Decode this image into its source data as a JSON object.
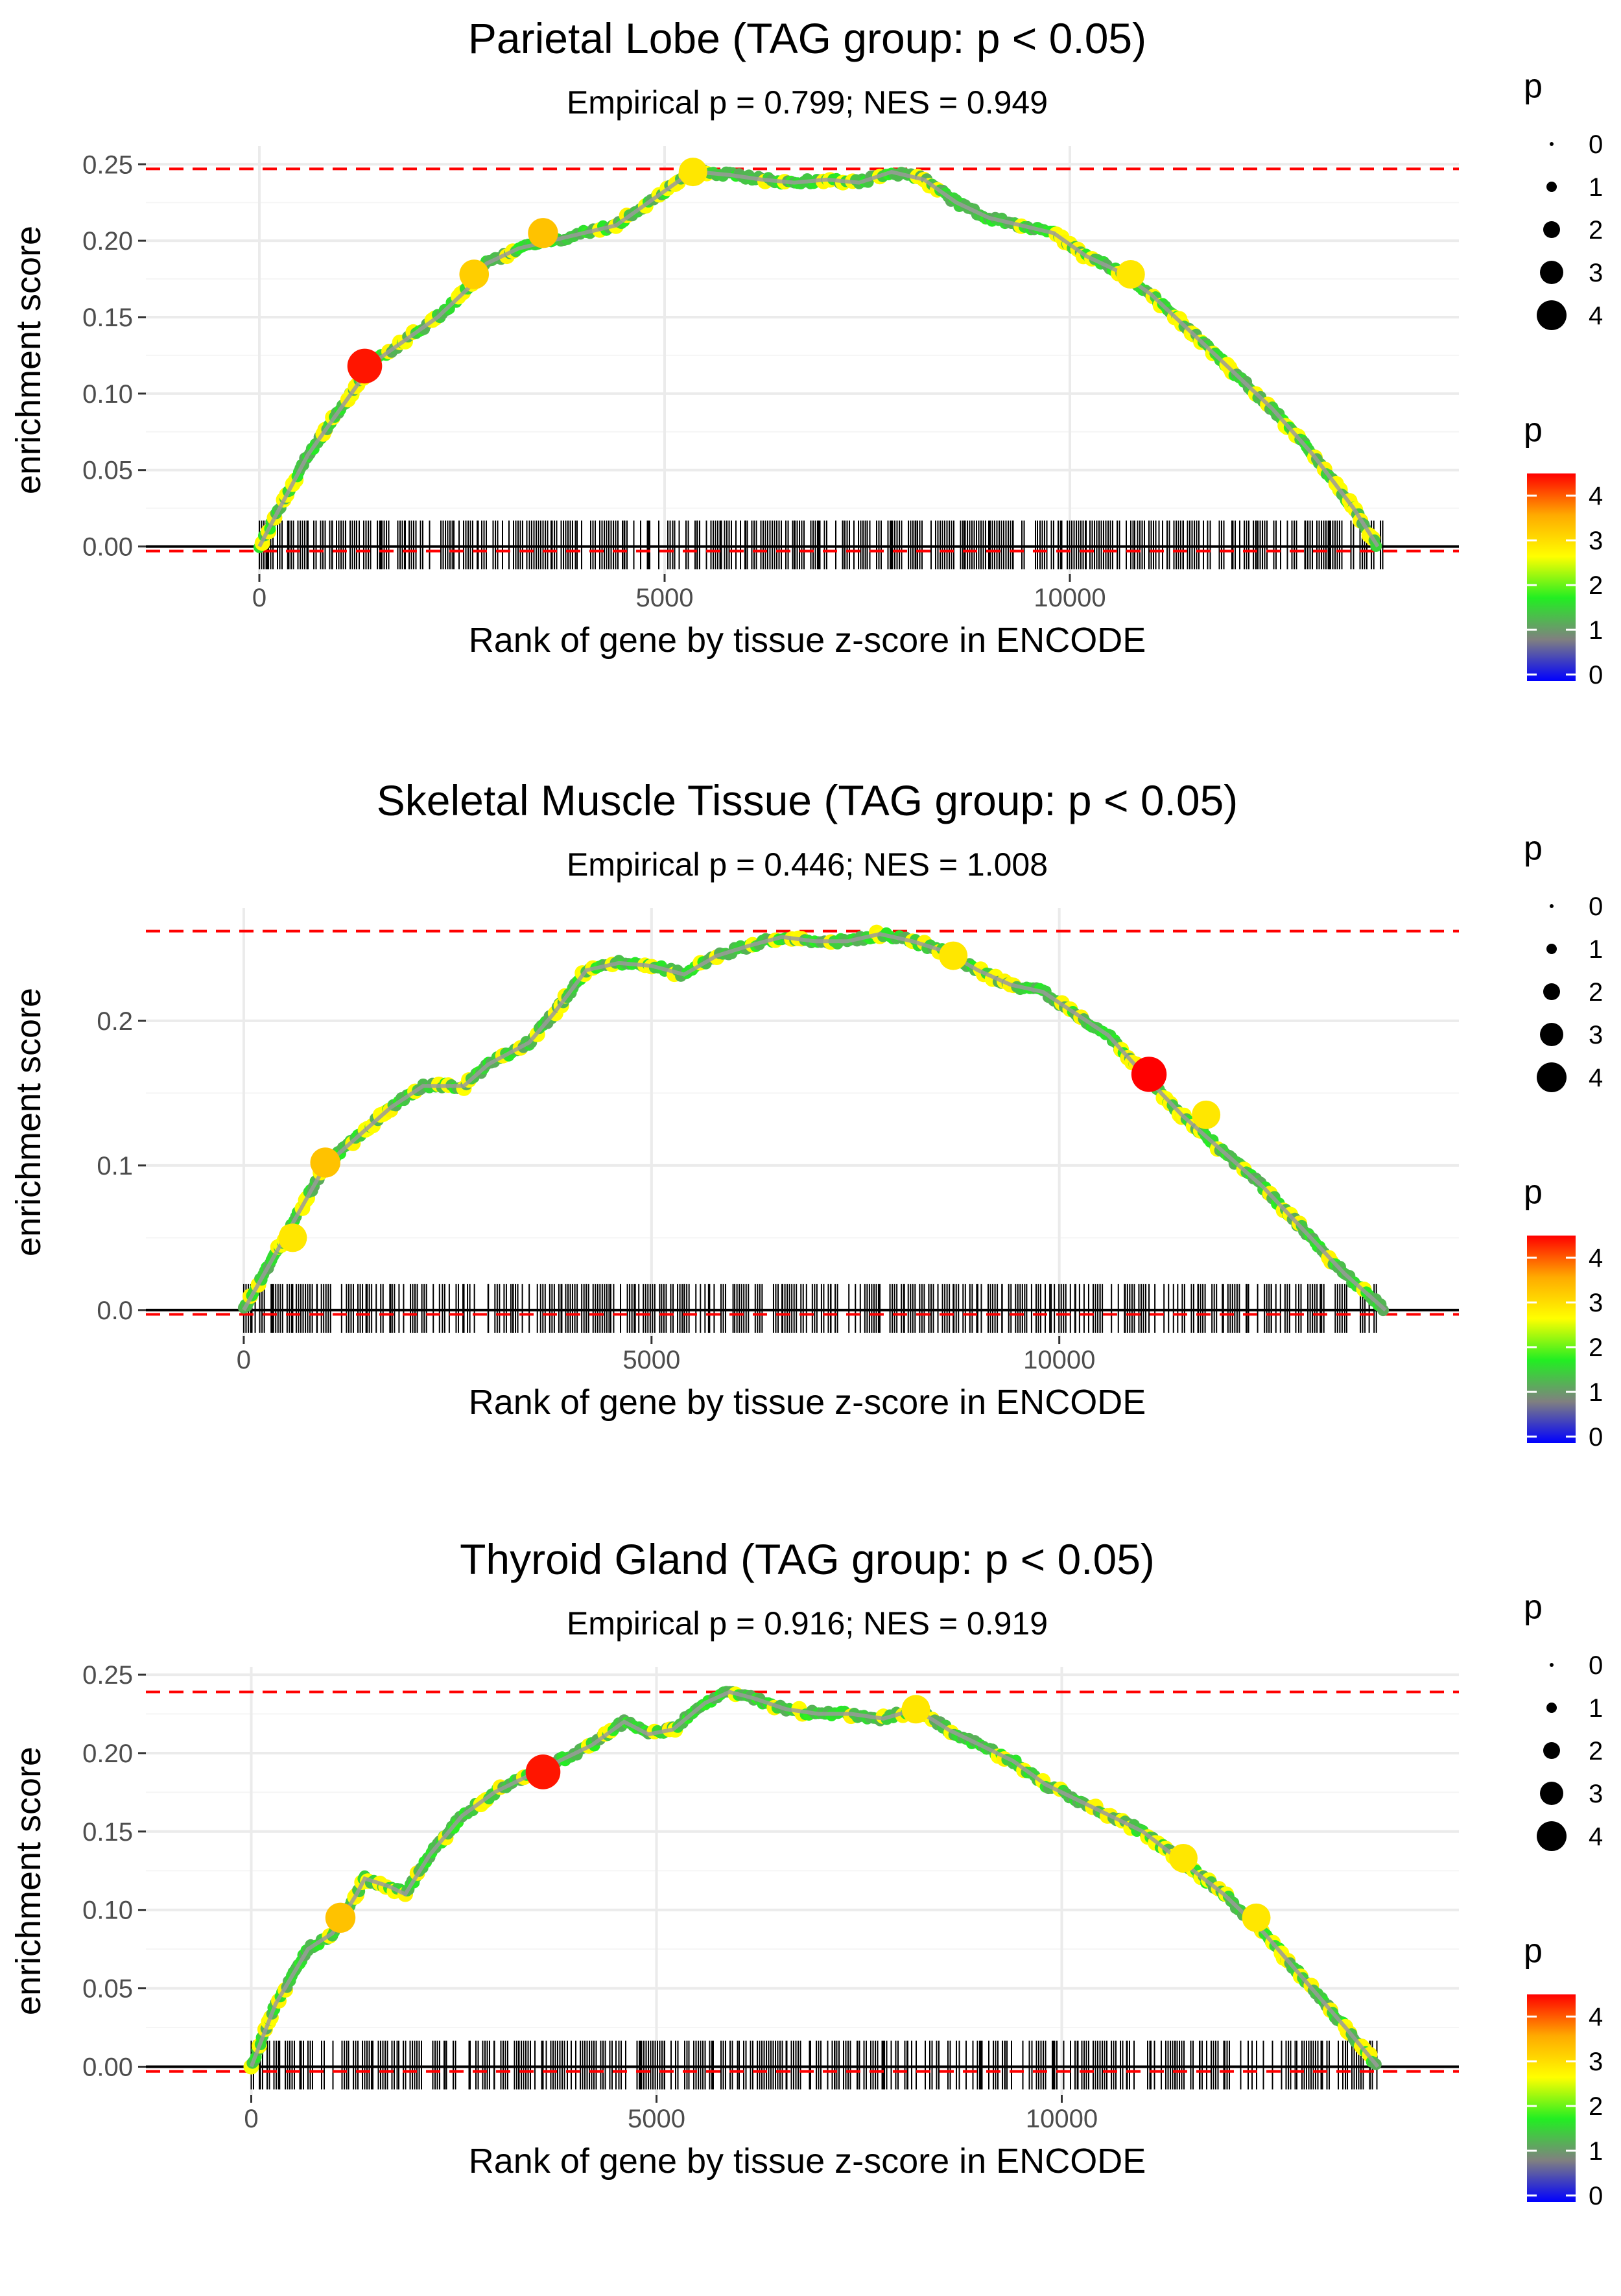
{
  "chart_data": [
    {
      "type": "line",
      "title": "Parietal Lobe (TAG group: p < 0.05)",
      "subtitle": "Empirical p = 0.799; NES = 0.949",
      "xlabel": "Rank of gene by tissue z-score in ENCODE",
      "ylabel": "enrichment score",
      "xlim": [
        -1400,
        14800
      ],
      "ylim": [
        -0.018,
        0.262
      ],
      "xticks": [
        0,
        5000,
        10000
      ],
      "xtick_labels": [
        "0",
        "5000",
        "10000"
      ],
      "yticks": [
        0.0,
        0.05,
        0.1,
        0.15,
        0.2,
        0.25
      ],
      "ytick_labels": [
        "0.00",
        "0.05",
        "0.10",
        "0.15",
        "0.20",
        "0.25"
      ],
      "max_es_line": 0.247,
      "min_es_line": -0.003,
      "series": [
        {
          "name": "running enrichment score",
          "x": [
            0,
            300,
            600,
            1000,
            1400,
            1800,
            2200,
            2600,
            2800,
            3200,
            3600,
            4000,
            4400,
            4800,
            5200,
            5400,
            5800,
            6200,
            6600,
            7000,
            7400,
            7800,
            8200,
            8600,
            9000,
            9400,
            9800,
            10200,
            10600,
            11000,
            11500,
            12000,
            12500,
            13000,
            13500,
            13800
          ],
          "y": [
            0.0,
            0.03,
            0.06,
            0.09,
            0.12,
            0.135,
            0.15,
            0.17,
            0.185,
            0.195,
            0.2,
            0.205,
            0.21,
            0.225,
            0.24,
            0.245,
            0.243,
            0.24,
            0.238,
            0.24,
            0.238,
            0.245,
            0.24,
            0.225,
            0.215,
            0.21,
            0.205,
            0.19,
            0.18,
            0.165,
            0.14,
            0.115,
            0.09,
            0.06,
            0.025,
            0.0
          ]
        }
      ],
      "highlight_points": [
        {
          "x": 1300,
          "y": 0.118,
          "p": 4.2
        },
        {
          "x": 5350,
          "y": 0.245,
          "p": 3.0
        },
        {
          "x": 2650,
          "y": 0.178,
          "p": 3.2
        },
        {
          "x": 10750,
          "y": 0.178,
          "p": 3.0
        },
        {
          "x": 3500,
          "y": 0.205,
          "p": 3.3
        }
      ],
      "gene_ticks_x": [
        100,
        350,
        600,
        900,
        1200,
        1500,
        1800,
        2100,
        2400,
        2700,
        3000,
        3300,
        3600,
        3900,
        4200,
        4500,
        4800,
        5100,
        5400,
        5700,
        6000,
        6300,
        6600,
        6900,
        7200,
        7500,
        7800,
        8100,
        8400,
        8700,
        9000,
        9300,
        9600,
        9900,
        10200,
        10500,
        10800,
        11100,
        11400,
        11700,
        12000,
        12300,
        12600,
        12900,
        13200,
        13500,
        13750
      ],
      "legend_size": {
        "title": "p",
        "values": [
          "0",
          "1",
          "2",
          "3",
          "4"
        ]
      },
      "legend_color": {
        "title": "p",
        "labels": [
          "4",
          "3",
          "2",
          "1",
          "0"
        ],
        "colors": [
          "#ff0000",
          "#ffaa00",
          "#ffff00",
          "#22ee22",
          "#808080",
          "#0000ff"
        ]
      }
    },
    {
      "type": "line",
      "title": "Skeletal Muscle Tissue (TAG group: p < 0.05)",
      "subtitle": "Empirical p = 0.446; NES = 1.008",
      "xlabel": "Rank of gene by tissue z-score in ENCODE",
      "ylabel": "enrichment score",
      "xlim": [
        -1200,
        14900
      ],
      "ylim": [
        -0.018,
        0.278
      ],
      "xticks": [
        0,
        5000,
        10000
      ],
      "xtick_labels": [
        "0",
        "5000",
        "10000"
      ],
      "yticks": [
        0.0,
        0.1,
        0.2
      ],
      "ytick_labels": [
        "0.0",
        "0.1",
        "0.2"
      ],
      "max_es_line": 0.262,
      "min_es_line": -0.003,
      "series": [
        {
          "name": "running enrichment score",
          "x": [
            0,
            300,
            600,
            1000,
            1400,
            1800,
            2200,
            2700,
            3000,
            3500,
            3800,
            4200,
            4600,
            5000,
            5400,
            5800,
            6200,
            6600,
            7000,
            7400,
            7800,
            8200,
            8600,
            9000,
            9400,
            9800,
            10200,
            10600,
            11000,
            11500,
            12000,
            12500,
            13000,
            13500,
            14000
          ],
          "y": [
            0.0,
            0.03,
            0.06,
            0.1,
            0.12,
            0.14,
            0.155,
            0.155,
            0.17,
            0.185,
            0.205,
            0.235,
            0.24,
            0.238,
            0.232,
            0.245,
            0.252,
            0.258,
            0.255,
            0.255,
            0.26,
            0.255,
            0.248,
            0.235,
            0.225,
            0.22,
            0.205,
            0.19,
            0.165,
            0.135,
            0.11,
            0.085,
            0.055,
            0.025,
            0.0
          ]
        }
      ],
      "highlight_points": [
        {
          "x": 11100,
          "y": 0.163,
          "p": 4.3
        },
        {
          "x": 1000,
          "y": 0.102,
          "p": 3.3
        },
        {
          "x": 600,
          "y": 0.05,
          "p": 3.0
        },
        {
          "x": 11800,
          "y": 0.135,
          "p": 3.0
        },
        {
          "x": 8700,
          "y": 0.245,
          "p": 3.0
        }
      ],
      "gene_ticks_x": [
        100,
        350,
        600,
        900,
        1200,
        1500,
        1800,
        2100,
        2400,
        2700,
        3000,
        3300,
        3600,
        3900,
        4200,
        4500,
        4800,
        5100,
        5400,
        5700,
        6000,
        6300,
        6600,
        6900,
        7200,
        7500,
        7800,
        8100,
        8400,
        8700,
        9000,
        9300,
        9600,
        9900,
        10200,
        10500,
        10800,
        11100,
        11400,
        11700,
        12000,
        12300,
        12600,
        12900,
        13200,
        13500,
        13800
      ],
      "legend_size": {
        "title": "p",
        "values": [
          "0",
          "1",
          "2",
          "3",
          "4"
        ]
      },
      "legend_color": {
        "title": "p",
        "labels": [
          "4",
          "3",
          "2",
          "1",
          "0"
        ],
        "colors": [
          "#ff0000",
          "#ffaa00",
          "#ffff00",
          "#22ee22",
          "#808080",
          "#0000ff"
        ]
      }
    },
    {
      "type": "line",
      "title": "Thyroid Gland (TAG group: p < 0.05)",
      "subtitle": "Empirical p = 0.916; NES = 0.919",
      "xlabel": "Rank of gene by tissue z-score in ENCODE",
      "ylabel": "enrichment score",
      "xlim": [
        -1300,
        14900
      ],
      "ylim": [
        -0.018,
        0.255
      ],
      "xticks": [
        0,
        5000,
        10000
      ],
      "xtick_labels": [
        "0",
        "5000",
        "10000"
      ],
      "yticks": [
        0.0,
        0.05,
        0.1,
        0.15,
        0.2,
        0.25
      ],
      "ytick_labels": [
        "0.00",
        "0.05",
        "0.10",
        "0.15",
        "0.20",
        "0.25"
      ],
      "max_es_line": 0.239,
      "min_es_line": -0.003,
      "series": [
        {
          "name": "running enrichment score",
          "x": [
            0,
            300,
            700,
            1000,
            1300,
            1400,
            1700,
            1900,
            2200,
            2600,
            3000,
            3400,
            3800,
            4200,
            4600,
            4900,
            5200,
            5600,
            5900,
            6200,
            6600,
            7000,
            7400,
            7800,
            8200,
            8600,
            9000,
            9400,
            9800,
            10200,
            10600,
            11000,
            11500,
            12000,
            12500,
            13000,
            13500,
            13900
          ],
          "y": [
            0.0,
            0.04,
            0.075,
            0.085,
            0.11,
            0.12,
            0.115,
            0.11,
            0.135,
            0.16,
            0.175,
            0.185,
            0.195,
            0.205,
            0.22,
            0.212,
            0.215,
            0.232,
            0.239,
            0.235,
            0.228,
            0.225,
            0.225,
            0.222,
            0.228,
            0.215,
            0.205,
            0.195,
            0.18,
            0.17,
            0.16,
            0.15,
            0.13,
            0.11,
            0.085,
            0.055,
            0.025,
            0.0
          ]
        }
      ],
      "highlight_points": [
        {
          "x": 3600,
          "y": 0.188,
          "p": 4.2
        },
        {
          "x": 1100,
          "y": 0.095,
          "p": 3.3
        },
        {
          "x": 12400,
          "y": 0.095,
          "p": 3.0
        },
        {
          "x": 11500,
          "y": 0.133,
          "p": 3.0
        },
        {
          "x": 8200,
          "y": 0.228,
          "p": 3.0
        }
      ],
      "gene_ticks_x": [
        100,
        350,
        600,
        900,
        1200,
        1500,
        1800,
        2100,
        2400,
        2700,
        3000,
        3300,
        3600,
        3900,
        4200,
        4500,
        4800,
        5100,
        5400,
        5700,
        6000,
        6300,
        6600,
        6900,
        7200,
        7500,
        7800,
        8100,
        8400,
        8700,
        9000,
        9300,
        9600,
        9900,
        10200,
        10500,
        10800,
        11100,
        11400,
        11700,
        12000,
        12300,
        12600,
        12900,
        13200,
        13500,
        13800
      ],
      "legend_size": {
        "title": "p",
        "values": [
          "0",
          "1",
          "2",
          "3",
          "4"
        ]
      },
      "legend_color": {
        "title": "p",
        "labels": [
          "4",
          "3",
          "2",
          "1",
          "0"
        ],
        "colors": [
          "#ff0000",
          "#ffaa00",
          "#ffff00",
          "#22ee22",
          "#808080",
          "#0000ff"
        ]
      }
    }
  ]
}
